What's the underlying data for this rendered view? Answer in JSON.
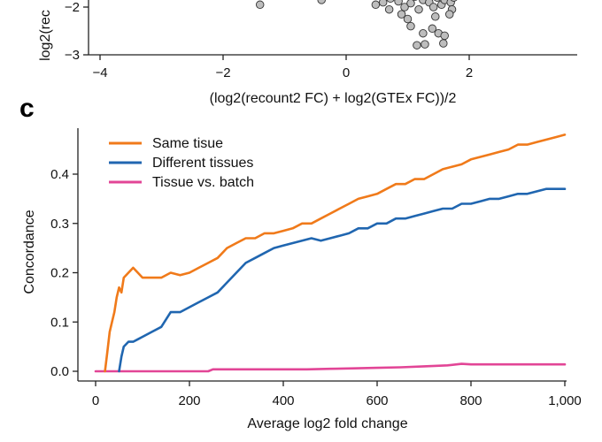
{
  "top_panel": {
    "ylabel_fragment": "log2(rec",
    "ytick_labels": [
      "−2",
      "−3"
    ],
    "xtick_labels": [
      "−4",
      "−2",
      "0",
      "2"
    ],
    "xlabel_text": "(log2(recount2 FC) + log2(GTEx FC))/2",
    "point_color": "#bdbdbd",
    "points": [
      [
        -1.4,
        -1.95
      ],
      [
        -0.4,
        -1.85
      ],
      [
        0.48,
        -1.95
      ],
      [
        0.6,
        -1.9
      ],
      [
        0.72,
        -1.82
      ],
      [
        0.85,
        -1.88
      ],
      [
        0.95,
        -2.0
      ],
      [
        1.05,
        -1.92
      ],
      [
        1.12,
        -1.78
      ],
      [
        1.18,
        -2.05
      ],
      [
        1.25,
        -1.85
      ],
      [
        0.7,
        -2.05
      ],
      [
        0.9,
        -2.15
      ],
      [
        1.0,
        -2.25
      ],
      [
        1.05,
        -2.4
      ],
      [
        1.35,
        -1.9
      ],
      [
        1.42,
        -2.0
      ],
      [
        1.48,
        -1.8
      ],
      [
        1.55,
        -1.95
      ],
      [
        1.6,
        -1.85
      ],
      [
        1.65,
        -1.75
      ],
      [
        1.7,
        -1.9
      ],
      [
        1.72,
        -2.05
      ],
      [
        1.68,
        -2.15
      ],
      [
        1.75,
        -1.8
      ],
      [
        1.45,
        -2.2
      ],
      [
        1.4,
        -2.45
      ],
      [
        1.5,
        -2.55
      ],
      [
        1.25,
        -2.55
      ],
      [
        1.6,
        -2.6
      ],
      [
        1.15,
        -2.8
      ],
      [
        1.28,
        -2.78
      ],
      [
        1.58,
        -2.76
      ],
      [
        1.5,
        -1.7
      ],
      [
        1.3,
        -1.72
      ]
    ]
  },
  "panel_letter": "c",
  "chart_data": {
    "type": "line",
    "title": "",
    "xlabel": "Average log2 fold change",
    "ylabel": "Concordance",
    "xlim": [
      0,
      1000
    ],
    "ylim": [
      0,
      0.48
    ],
    "xticks": [
      0,
      200,
      400,
      600,
      800,
      1000
    ],
    "xtick_labels": [
      "0",
      "200",
      "400",
      "600",
      "800",
      "1,000"
    ],
    "yticks": [
      0.0,
      0.1,
      0.2,
      0.3,
      0.4
    ],
    "ytick_labels": [
      "0.0",
      "0.1",
      "0.2",
      "0.3",
      "0.4"
    ],
    "grid": false,
    "legend_position": "top-left",
    "series": [
      {
        "name": "Same tisue",
        "color": "#f07a1a",
        "x": [
          20,
          25,
          30,
          35,
          40,
          45,
          50,
          55,
          60,
          70,
          80,
          90,
          100,
          120,
          140,
          160,
          180,
          200,
          220,
          240,
          260,
          280,
          300,
          320,
          340,
          360,
          380,
          400,
          420,
          440,
          460,
          480,
          500,
          520,
          540,
          560,
          580,
          600,
          620,
          640,
          660,
          680,
          700,
          720,
          740,
          760,
          780,
          800,
          820,
          840,
          860,
          880,
          900,
          920,
          940,
          960,
          980,
          1000
        ],
        "y": [
          0.0,
          0.04,
          0.08,
          0.1,
          0.12,
          0.15,
          0.17,
          0.16,
          0.19,
          0.2,
          0.21,
          0.2,
          0.19,
          0.19,
          0.19,
          0.2,
          0.195,
          0.2,
          0.21,
          0.22,
          0.23,
          0.25,
          0.26,
          0.27,
          0.27,
          0.28,
          0.28,
          0.285,
          0.29,
          0.3,
          0.3,
          0.31,
          0.32,
          0.33,
          0.34,
          0.35,
          0.355,
          0.36,
          0.37,
          0.38,
          0.38,
          0.39,
          0.39,
          0.4,
          0.41,
          0.415,
          0.42,
          0.43,
          0.435,
          0.44,
          0.445,
          0.45,
          0.46,
          0.46,
          0.465,
          0.47,
          0.475,
          0.48
        ]
      },
      {
        "name": "Different tissues",
        "color": "#2066b0",
        "x": [
          50,
          55,
          60,
          70,
          80,
          90,
          100,
          120,
          140,
          160,
          180,
          200,
          220,
          240,
          260,
          280,
          300,
          320,
          340,
          360,
          380,
          400,
          420,
          440,
          460,
          480,
          500,
          520,
          540,
          560,
          580,
          600,
          620,
          640,
          660,
          680,
          700,
          720,
          740,
          760,
          780,
          800,
          820,
          840,
          860,
          880,
          900,
          920,
          940,
          960,
          980,
          1000
        ],
        "y": [
          0.0,
          0.03,
          0.05,
          0.06,
          0.06,
          0.065,
          0.07,
          0.08,
          0.09,
          0.12,
          0.12,
          0.13,
          0.14,
          0.15,
          0.16,
          0.18,
          0.2,
          0.22,
          0.23,
          0.24,
          0.25,
          0.255,
          0.26,
          0.265,
          0.27,
          0.265,
          0.27,
          0.275,
          0.28,
          0.29,
          0.29,
          0.3,
          0.3,
          0.31,
          0.31,
          0.315,
          0.32,
          0.325,
          0.33,
          0.33,
          0.34,
          0.34,
          0.345,
          0.35,
          0.35,
          0.355,
          0.36,
          0.36,
          0.365,
          0.37,
          0.37,
          0.37
        ]
      },
      {
        "name": "Tissue vs. batch",
        "color": "#e24596",
        "x": [
          0,
          50,
          100,
          150,
          200,
          240,
          250,
          300,
          350,
          400,
          450,
          500,
          550,
          600,
          650,
          700,
          750,
          780,
          800,
          850,
          900,
          950,
          1000
        ],
        "y": [
          0.0,
          0.0,
          0.0,
          0.0,
          0.0,
          0.0,
          0.004,
          0.004,
          0.004,
          0.004,
          0.004,
          0.005,
          0.006,
          0.007,
          0.008,
          0.01,
          0.012,
          0.015,
          0.014,
          0.014,
          0.014,
          0.014,
          0.014
        ]
      }
    ]
  }
}
